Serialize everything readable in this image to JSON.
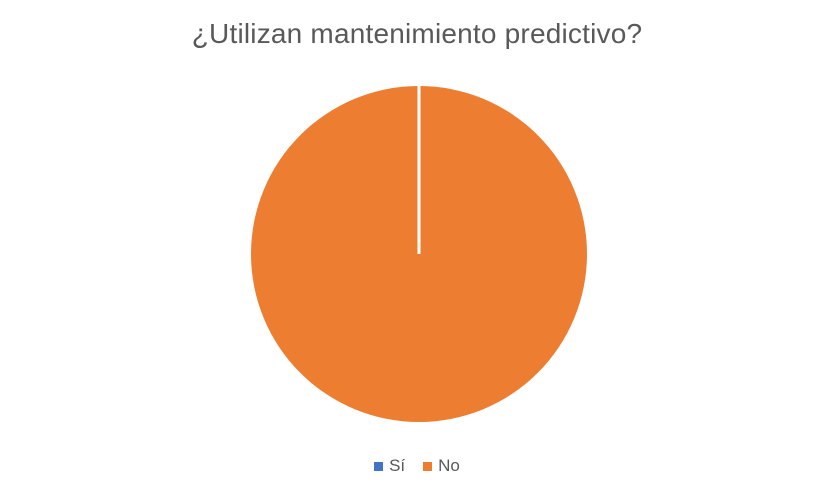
{
  "chart_data": {
    "type": "pie",
    "title": "¿Utilizan mantenimiento predictivo?",
    "categories": [
      "Sí",
      "No"
    ],
    "values": [
      0,
      100
    ],
    "colors": [
      "#4472C4",
      "#ED7D31"
    ],
    "legend_position": "bottom"
  }
}
